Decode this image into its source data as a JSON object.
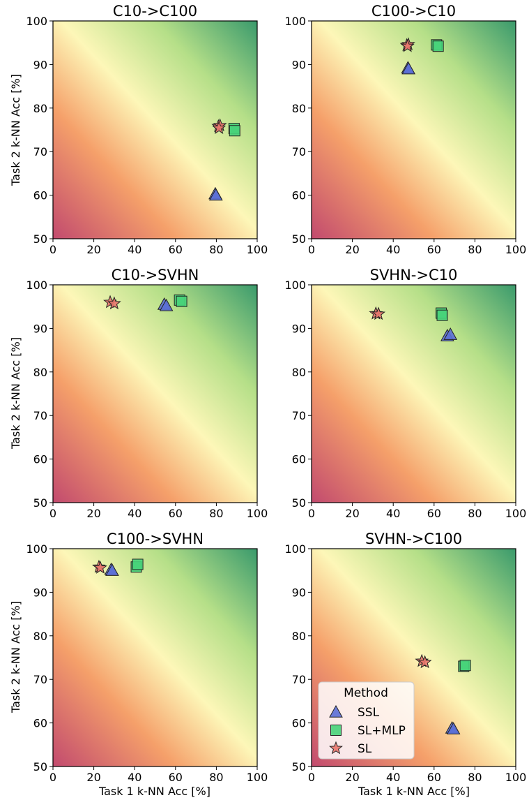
{
  "figure": {
    "ylabel": "Task 2 k-NN Acc [%]",
    "xlabel": "Task 1 k-NN Acc [%]"
  },
  "legend": {
    "title": "Method",
    "placement": "lower-left of bottom-right panel",
    "entries": [
      {
        "label": "SSL",
        "marker": "triangle",
        "color": "#5b6fd6"
      },
      {
        "label": "SL+MLP",
        "marker": "square",
        "color": "#47d37a"
      },
      {
        "label": "SL",
        "marker": "star",
        "color": "#e8766d"
      }
    ]
  },
  "colors": {
    "bg_low": "#c24a6e",
    "bg_mid_low": "#f5a06a",
    "bg_mid": "#fdf7b8",
    "bg_mid_high": "#b5df88",
    "bg_high": "#3a9a6c"
  },
  "chart_data": [
    {
      "type": "scatter",
      "title": "C10->C100",
      "xlim": [
        0,
        100
      ],
      "ylim": [
        50,
        100
      ],
      "xticks": [
        "0",
        "20",
        "40",
        "60",
        "80",
        "100"
      ],
      "yticks": [
        "50",
        "60",
        "70",
        "80",
        "90",
        "100"
      ],
      "series": [
        {
          "name": "SSL",
          "points": [
            [
              79.5,
              60.3
            ],
            [
              79.8,
              60.0
            ]
          ]
        },
        {
          "name": "SL+MLP",
          "points": [
            [
              88.7,
              75.3
            ],
            [
              89.0,
              74.8
            ]
          ]
        },
        {
          "name": "SL",
          "points": [
            [
              81.0,
              75.8
            ],
            [
              81.8,
              76.0
            ],
            [
              81.3,
              75.4
            ]
          ]
        }
      ]
    },
    {
      "type": "scatter",
      "title": "C100->C10",
      "xlim": [
        0,
        100
      ],
      "ylim": [
        50,
        100
      ],
      "xticks": [
        "0",
        "20",
        "40",
        "60",
        "80",
        "100"
      ],
      "yticks": [
        "50",
        "60",
        "70",
        "80",
        "90",
        "100"
      ],
      "series": [
        {
          "name": "SSL",
          "points": [
            [
              47.2,
              89.2
            ],
            [
              47.5,
              89.0
            ]
          ]
        },
        {
          "name": "SL+MLP",
          "points": [
            [
              61.2,
              94.5
            ],
            [
              62.0,
              94.2
            ]
          ]
        },
        {
          "name": "SL",
          "points": [
            [
              46.6,
              94.4
            ],
            [
              47.4,
              94.6
            ],
            [
              47.0,
              94.2
            ]
          ]
        }
      ]
    },
    {
      "type": "scatter",
      "title": "C10->SVHN",
      "xlim": [
        0,
        100
      ],
      "ylim": [
        50,
        100
      ],
      "xticks": [
        "0",
        "20",
        "40",
        "60",
        "80",
        "100"
      ],
      "yticks": [
        "50",
        "60",
        "70",
        "80",
        "90",
        "100"
      ],
      "series": [
        {
          "name": "SSL",
          "points": [
            [
              54.5,
              95.5
            ],
            [
              55.5,
              95.2
            ]
          ]
        },
        {
          "name": "SL+MLP",
          "points": [
            [
              62.0,
              96.5
            ],
            [
              63.0,
              96.2
            ]
          ]
        },
        {
          "name": "SL",
          "points": [
            [
              28.0,
              96.0
            ],
            [
              30.0,
              95.7
            ]
          ]
        }
      ]
    },
    {
      "type": "scatter",
      "title": "SVHN->C10",
      "xlim": [
        0,
        100
      ],
      "ylim": [
        50,
        100
      ],
      "xticks": [
        "0",
        "20",
        "40",
        "60",
        "80",
        "100"
      ],
      "yticks": [
        "50",
        "60",
        "70",
        "80",
        "90",
        "100"
      ],
      "series": [
        {
          "name": "SSL",
          "points": [
            [
              66.5,
              88.3
            ],
            [
              68.0,
              88.6
            ]
          ]
        },
        {
          "name": "SL+MLP",
          "points": [
            [
              63.5,
              93.5
            ],
            [
              64.0,
              93.0
            ]
          ]
        },
        {
          "name": "SL",
          "points": [
            [
              31.5,
              93.4
            ],
            [
              32.8,
              93.3
            ]
          ]
        }
      ]
    },
    {
      "type": "scatter",
      "title": "C100->SVHN",
      "xlim": [
        0,
        100
      ],
      "ylim": [
        50,
        100
      ],
      "xticks": [
        "0",
        "20",
        "40",
        "60",
        "80",
        "100"
      ],
      "yticks": [
        "50",
        "60",
        "70",
        "80",
        "90",
        "100"
      ],
      "series": [
        {
          "name": "SSL",
          "points": [
            [
              28.5,
              95.2
            ],
            [
              29.0,
              95.0
            ]
          ]
        },
        {
          "name": "SL+MLP",
          "points": [
            [
              40.8,
              95.8
            ],
            [
              41.5,
              96.4
            ]
          ]
        },
        {
          "name": "SL",
          "points": [
            [
              22.5,
              95.8
            ],
            [
              23.2,
              95.6
            ]
          ]
        }
      ]
    },
    {
      "type": "scatter",
      "title": "SVHN->C100",
      "xlim": [
        0,
        100
      ],
      "ylim": [
        50,
        100
      ],
      "xticks": [
        "0",
        "20",
        "40",
        "60",
        "80",
        "100"
      ],
      "yticks": [
        "50",
        "60",
        "70",
        "80",
        "90",
        "100"
      ],
      "series": [
        {
          "name": "SSL",
          "points": [
            [
              68.8,
              58.8
            ],
            [
              69.5,
              58.6
            ]
          ]
        },
        {
          "name": "SL+MLP",
          "points": [
            [
              74.5,
              73.0
            ],
            [
              75.3,
              73.2
            ]
          ]
        },
        {
          "name": "SL",
          "points": [
            [
              54.0,
              74.2
            ],
            [
              55.5,
              73.9
            ]
          ]
        }
      ]
    }
  ]
}
